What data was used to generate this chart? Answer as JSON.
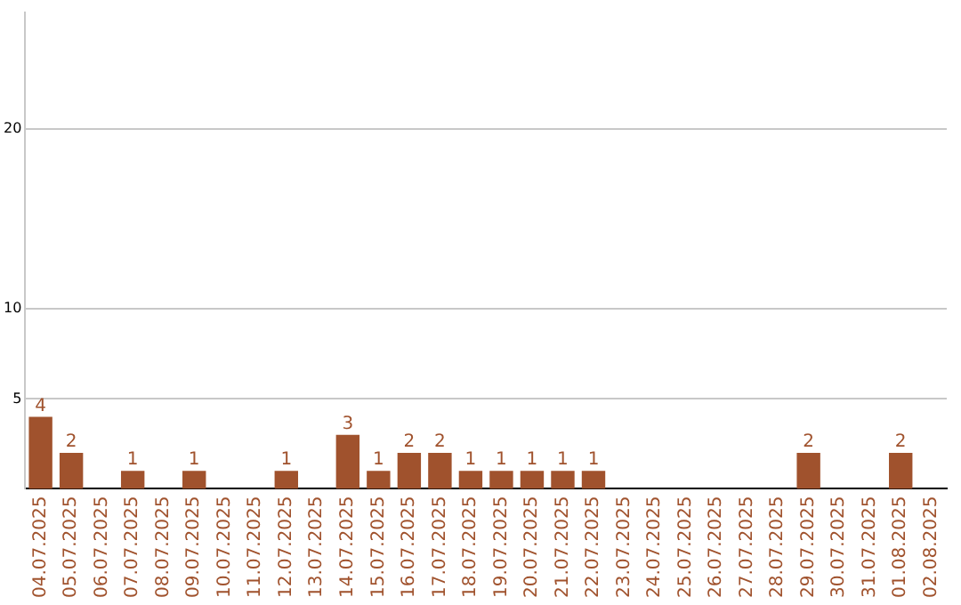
{
  "chart_data": {
    "type": "bar",
    "categories": [
      "04.07.2025",
      "05.07.2025",
      "06.07.2025",
      "07.07.2025",
      "08.07.2025",
      "09.07.2025",
      "10.07.2025",
      "11.07.2025",
      "12.07.2025",
      "13.07.2025",
      "14.07.2025",
      "15.07.2025",
      "16.07.2025",
      "17.07.2025",
      "18.07.2025",
      "19.07.2025",
      "20.07.2025",
      "21.07.2025",
      "22.07.2025",
      "23.07.2025",
      "24.07.2025",
      "25.07.2025",
      "26.07.2025",
      "27.07.2025",
      "28.07.2025",
      "29.07.2025",
      "30.07.2025",
      "31.07.2025",
      "01.08.2025",
      "02.08.2025"
    ],
    "values": [
      4,
      2,
      0,
      1,
      0,
      1,
      0,
      0,
      1,
      0,
      3,
      1,
      2,
      2,
      1,
      1,
      1,
      1,
      1,
      0,
      0,
      0,
      0,
      0,
      0,
      2,
      0,
      0,
      2,
      0
    ],
    "value_labels": [
      "4",
      "2",
      null,
      "1",
      null,
      "1",
      null,
      null,
      "1",
      null,
      "3",
      "1",
      "2",
      "2",
      "1",
      "1",
      "1",
      "1",
      "1",
      null,
      null,
      null,
      null,
      null,
      null,
      "2",
      null,
      null,
      "2",
      null
    ],
    "color": "#a0522d",
    "ylim": [
      0,
      26.5
    ],
    "yticks": [
      5,
      10,
      20
    ],
    "grid": "y",
    "legend": false
  }
}
